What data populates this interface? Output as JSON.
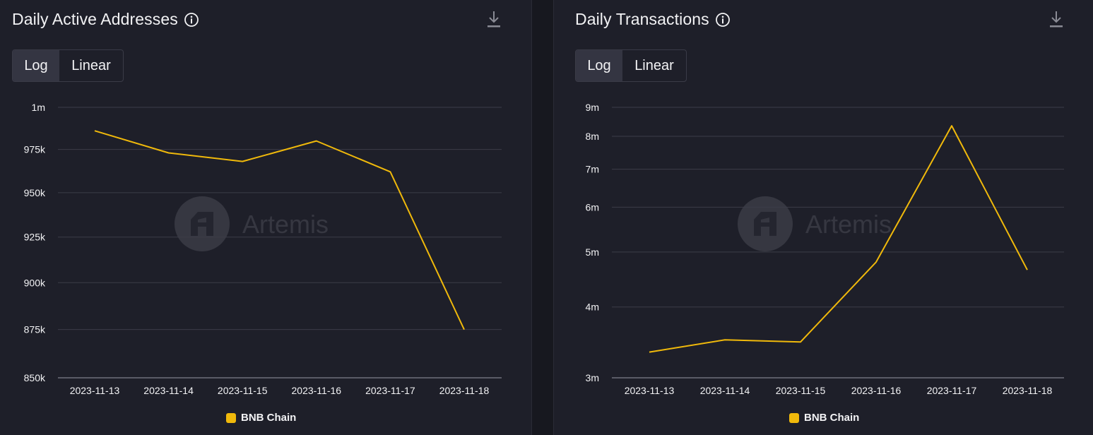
{
  "colors": {
    "background": "#1e1f29",
    "gridline": "#3c3d49",
    "axis": "#5a5b66",
    "line": "#f0b90b",
    "text": "#f2f2f4",
    "watermark": "#4a4b55"
  },
  "watermark_text": "Artemis",
  "icons": {
    "info": "info-icon",
    "download": "download-icon"
  },
  "chart_data": [
    {
      "type": "line",
      "title": "Daily Active Addresses",
      "scale_options": [
        "Log",
        "Linear"
      ],
      "selected_scale": "Log",
      "y_scale": "log",
      "x": [
        "2023-11-13",
        "2023-11-14",
        "2023-11-15",
        "2023-11-16",
        "2023-11-17",
        "2023-11-18"
      ],
      "series": [
        {
          "name": "BNB Chain",
          "values": [
            986000,
            973000,
            968000,
            980000,
            962000,
            875000
          ]
        }
      ],
      "ylim": [
        850000,
        1000000
      ],
      "yticks": [
        850000,
        875000,
        900000,
        925000,
        950000,
        975000,
        1000000
      ],
      "ytick_labels": [
        "850k",
        "875k",
        "900k",
        "925k",
        "950k",
        "975k",
        "1m"
      ],
      "legend_position": "bottom",
      "grid": true
    },
    {
      "type": "line",
      "title": "Daily Transactions",
      "scale_options": [
        "Log",
        "Linear"
      ],
      "selected_scale": "Log",
      "y_scale": "log",
      "x": [
        "2023-11-13",
        "2023-11-14",
        "2023-11-15",
        "2023-11-16",
        "2023-11-17",
        "2023-11-18"
      ],
      "series": [
        {
          "name": "BNB Chain",
          "values": [
            3330000,
            3500000,
            3470000,
            4800000,
            8350000,
            4650000
          ]
        }
      ],
      "ylim": [
        3000000,
        9000000
      ],
      "yticks": [
        3000000,
        4000000,
        5000000,
        6000000,
        7000000,
        8000000,
        9000000
      ],
      "ytick_labels": [
        "3m",
        "4m",
        "5m",
        "6m",
        "7m",
        "8m",
        "9m"
      ],
      "legend_position": "bottom",
      "grid": true
    }
  ]
}
